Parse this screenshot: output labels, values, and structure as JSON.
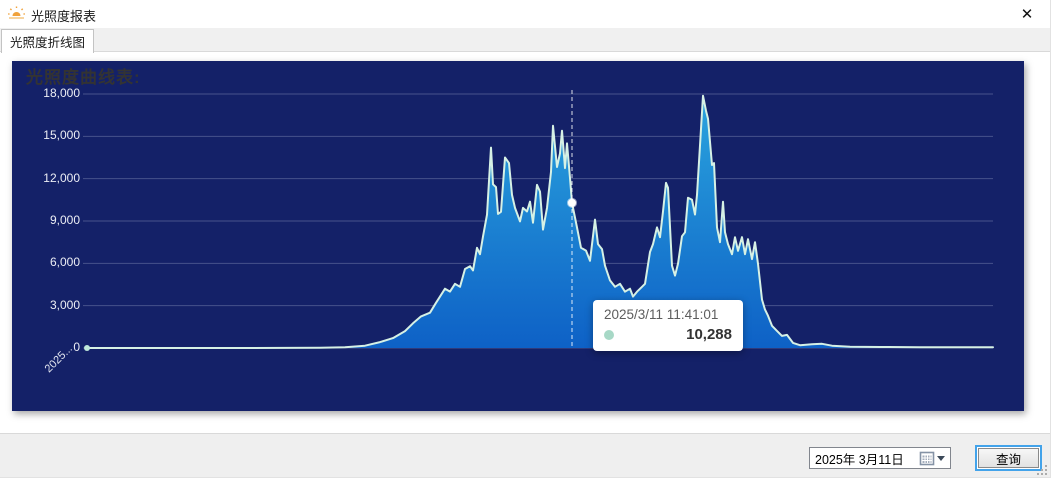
{
  "window": {
    "title": "光照度报表",
    "close_glyph": "✕"
  },
  "tabs": [
    {
      "label": "光照度折线图",
      "selected": true
    }
  ],
  "footer": {
    "date_value": "2025年 3月11日",
    "query_label": "查询"
  },
  "colors": {
    "panel_bg": "#142168",
    "area_top": "#2aa4de",
    "area_bottom": "#0e61c6",
    "line": "#d6f1e5",
    "grid": "rgba(205,212,232,0.28)",
    "hover_line": "rgba(255,255,255,0.85)",
    "tooltip_dot": "#a7d8c6",
    "app_icon": "#f0a23c",
    "accent": "#0078d7"
  },
  "chart_data": {
    "type": "area",
    "title": "光照度曲线表:",
    "ylim": [
      0,
      18000
    ],
    "y_ticks": [
      "0",
      "3,000",
      "6,000",
      "9,000",
      "12,000",
      "15,000",
      "18,000"
    ],
    "x_tick_label": "2025...",
    "grid": true,
    "hover": {
      "x": 485,
      "value": 10288,
      "value_label": "10,288",
      "datetime": "2025/3/11 11:41:01"
    },
    "series": [
      {
        "name": "光照度",
        "points": [
          [
            0,
            0
          ],
          [
            63,
            0
          ],
          [
            163,
            0
          ],
          [
            233,
            20
          ],
          [
            258,
            60
          ],
          [
            278,
            160
          ],
          [
            293,
            420
          ],
          [
            306,
            700
          ],
          [
            318,
            1200
          ],
          [
            326,
            1750
          ],
          [
            334,
            2240
          ],
          [
            343,
            2500
          ],
          [
            349,
            3200
          ],
          [
            353,
            3640
          ],
          [
            358,
            4200
          ],
          [
            363,
            4000
          ],
          [
            368,
            4550
          ],
          [
            373,
            4340
          ],
          [
            378,
            5600
          ],
          [
            383,
            5800
          ],
          [
            386,
            5500
          ],
          [
            390,
            7100
          ],
          [
            393,
            6650
          ],
          [
            396,
            7900
          ],
          [
            400,
            9450
          ],
          [
            404,
            14200
          ],
          [
            406,
            11600
          ],
          [
            409,
            11400
          ],
          [
            411,
            9500
          ],
          [
            414,
            9650
          ],
          [
            418,
            13500
          ],
          [
            422,
            13100
          ],
          [
            425,
            10850
          ],
          [
            428,
            9930
          ],
          [
            433,
            8970
          ],
          [
            436,
            9930
          ],
          [
            440,
            9670
          ],
          [
            443,
            10370
          ],
          [
            446,
            8880
          ],
          [
            450,
            11560
          ],
          [
            453,
            11080
          ],
          [
            456,
            8390
          ],
          [
            460,
            9930
          ],
          [
            464,
            12480
          ],
          [
            466,
            15750
          ],
          [
            470,
            12830
          ],
          [
            473,
            13790
          ],
          [
            475,
            15400
          ],
          [
            478,
            12750
          ],
          [
            480,
            14500
          ],
          [
            483,
            12040
          ],
          [
            485,
            10288
          ],
          [
            490,
            8550
          ],
          [
            494,
            7100
          ],
          [
            499,
            6900
          ],
          [
            503,
            6180
          ],
          [
            508,
            9100
          ],
          [
            511,
            7360
          ],
          [
            515,
            7010
          ],
          [
            518,
            5830
          ],
          [
            523,
            4790
          ],
          [
            528,
            4340
          ],
          [
            533,
            4550
          ],
          [
            538,
            3990
          ],
          [
            543,
            4200
          ],
          [
            546,
            3640
          ],
          [
            550,
            3990
          ],
          [
            555,
            4340
          ],
          [
            558,
            4550
          ],
          [
            563,
            6800
          ],
          [
            566,
            7360
          ],
          [
            570,
            8550
          ],
          [
            573,
            7850
          ],
          [
            576,
            9670
          ],
          [
            579,
            11700
          ],
          [
            581,
            11350
          ],
          [
            585,
            5830
          ],
          [
            588,
            5130
          ],
          [
            591,
            5970
          ],
          [
            595,
            7920
          ],
          [
            598,
            8200
          ],
          [
            601,
            10650
          ],
          [
            605,
            10500
          ],
          [
            608,
            9460
          ],
          [
            610,
            10860
          ],
          [
            613,
            14360
          ],
          [
            616,
            17870
          ],
          [
            619,
            16820
          ],
          [
            621,
            16250
          ],
          [
            625,
            12970
          ],
          [
            627,
            13100
          ],
          [
            630,
            8550
          ],
          [
            633,
            7500
          ],
          [
            636,
            10370
          ],
          [
            638,
            8200
          ],
          [
            641,
            7360
          ],
          [
            645,
            6650
          ],
          [
            648,
            7850
          ],
          [
            651,
            6890
          ],
          [
            655,
            7850
          ],
          [
            658,
            6650
          ],
          [
            661,
            7710
          ],
          [
            665,
            6300
          ],
          [
            668,
            7500
          ],
          [
            671,
            5970
          ],
          [
            675,
            3430
          ],
          [
            678,
            2720
          ],
          [
            681,
            2290
          ],
          [
            685,
            1570
          ],
          [
            690,
            1210
          ],
          [
            695,
            860
          ],
          [
            700,
            930
          ],
          [
            706,
            360
          ],
          [
            713,
            200
          ],
          [
            725,
            260
          ],
          [
            735,
            300
          ],
          [
            745,
            160
          ],
          [
            763,
            90
          ],
          [
            793,
            70
          ],
          [
            833,
            60
          ],
          [
            873,
            50
          ],
          [
            906,
            60
          ]
        ]
      }
    ]
  }
}
